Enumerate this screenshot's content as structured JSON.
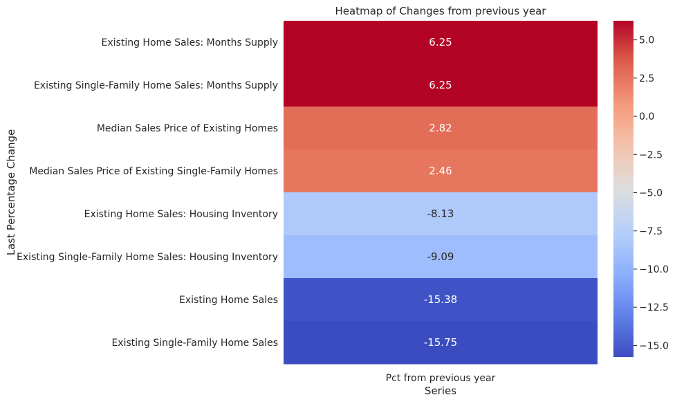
{
  "chart_data": {
    "type": "heatmap",
    "title": "Heatmap of Changes from previous year",
    "xlabel": "Series",
    "ylabel": "Last Percentage Change",
    "columns": [
      "Pct from previous year"
    ],
    "rows": [
      "Existing Home Sales: Months Supply",
      "Existing Single-Family Home Sales: Months Supply",
      "Median Sales Price of Existing Homes",
      "Median Sales Price of Existing Single-Family Homes",
      "Existing Home Sales: Housing Inventory",
      "Existing Single-Family Home Sales: Housing Inventory",
      "Existing Home Sales",
      "Existing Single-Family Home Sales"
    ],
    "values": [
      6.25,
      6.25,
      2.82,
      2.46,
      -8.13,
      -9.09,
      -15.38,
      -15.75
    ],
    "value_labels": [
      "6.25",
      "6.25",
      "2.82",
      "2.46",
      "-8.13",
      "-9.09",
      "-15.38",
      "-15.75"
    ],
    "colormap": "coolwarm",
    "vmin": -15.75,
    "vmax": 6.25,
    "colorbar_ticks": [
      5.0,
      2.5,
      0.0,
      -2.5,
      -5.0,
      -7.5,
      -10.0,
      -12.5,
      -15.0
    ],
    "colorbar_tick_labels": [
      "5.0",
      "2.5",
      "0.0",
      "−2.5",
      "−5.0",
      "−7.5",
      "−10.0",
      "−12.5",
      "−15.0"
    ],
    "grid": false
  }
}
